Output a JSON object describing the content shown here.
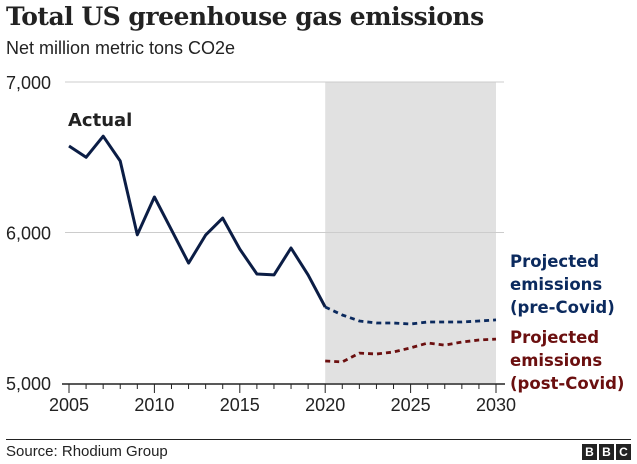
{
  "chart_data": {
    "type": "line",
    "title": "Total US greenhouse gas emissions",
    "subtitle": "Net million metric tons CO2e",
    "xlabel": "",
    "ylabel": "Net million metric tons CO2e",
    "xlim": [
      2005,
      2030
    ],
    "ylim": [
      5000,
      7000
    ],
    "x_ticks": [
      2005,
      2010,
      2015,
      2020,
      2025,
      2030
    ],
    "x_tick_labels": [
      "2005",
      "2010",
      "2015",
      "2020",
      "2025",
      "2030"
    ],
    "y_ticks": [
      5000,
      6000,
      7000
    ],
    "y_tick_labels": [
      "5,000",
      "6,000",
      "7,000"
    ],
    "grid": true,
    "shaded_region": {
      "x_from": 2020,
      "x_to": 2030,
      "color": "#e1e1e1"
    },
    "series": [
      {
        "name": "Actual",
        "label": "Actual",
        "style": "solid",
        "color": "#0b1d45",
        "x": [
          2005,
          2006,
          2007,
          2008,
          2009,
          2010,
          2011,
          2012,
          2013,
          2014,
          2015,
          2016,
          2017,
          2018,
          2019,
          2020
        ],
        "values": [
          6575,
          6500,
          6640,
          6475,
          5985,
          6236,
          6017,
          5797,
          5983,
          6096,
          5890,
          5724,
          5718,
          5897,
          5718,
          5505
        ]
      },
      {
        "name": "Projected emissions (pre-Covid)",
        "label_lines": [
          "Projected",
          "emissions",
          "(pre-Covid)"
        ],
        "style": "dashed",
        "color": "#0b2a5e",
        "x": [
          2020,
          2021,
          2022,
          2023,
          2024,
          2025,
          2026,
          2027,
          2028,
          2029,
          2030
        ],
        "values": [
          5505,
          5452,
          5412,
          5399,
          5399,
          5392,
          5405,
          5405,
          5405,
          5412,
          5419
        ]
      },
      {
        "name": "Projected emissions (post-Covid)",
        "label_lines": [
          "Projected",
          "emissions",
          "(post-Covid)"
        ],
        "style": "dashed",
        "color": "#6b0f0f",
        "x": [
          2020,
          2021,
          2022,
          2023,
          2024,
          2025,
          2026,
          2027,
          2028,
          2029,
          2030
        ],
        "values": [
          5146,
          5140,
          5199,
          5193,
          5206,
          5233,
          5266,
          5252,
          5272,
          5286,
          5292
        ]
      }
    ]
  },
  "footer": {
    "source": "Source: Rhodium Group",
    "logo_letters": [
      "B",
      "B",
      "C"
    ]
  }
}
